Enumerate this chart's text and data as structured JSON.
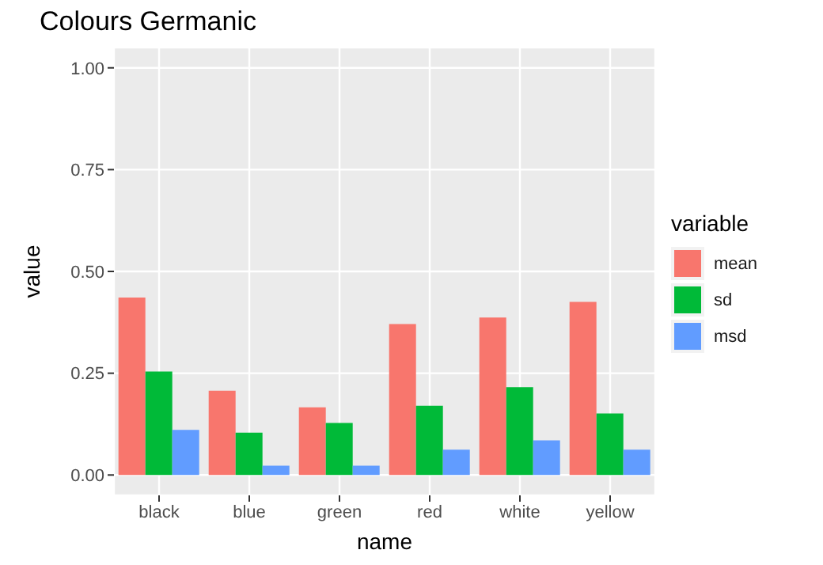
{
  "chart_data": {
    "type": "bar",
    "title": "Colours Germanic",
    "xlabel": "name",
    "ylabel": "value",
    "legend_title": "variable",
    "categories": [
      "black",
      "blue",
      "green",
      "red",
      "white",
      "yellow"
    ],
    "series": [
      {
        "name": "mean",
        "color": "#f8766d",
        "values": [
          0.436,
          0.207,
          0.166,
          0.371,
          0.387,
          0.425
        ]
      },
      {
        "name": "sd",
        "color": "#00ba38",
        "values": [
          0.254,
          0.104,
          0.128,
          0.17,
          0.216,
          0.151
        ]
      },
      {
        "name": "msd",
        "color": "#619cff",
        "values": [
          0.111,
          0.023,
          0.023,
          0.062,
          0.085,
          0.062
        ]
      }
    ],
    "ylim": [
      -0.05,
      1.05
    ],
    "yticks": [
      {
        "value": 0,
        "label": "0.00"
      },
      {
        "value": 0.25,
        "label": "0.25"
      },
      {
        "value": 0.5,
        "label": "0.50"
      },
      {
        "value": 0.75,
        "label": "0.75"
      },
      {
        "value": 1,
        "label": "1.00"
      }
    ],
    "grid": true,
    "legend": "right"
  }
}
